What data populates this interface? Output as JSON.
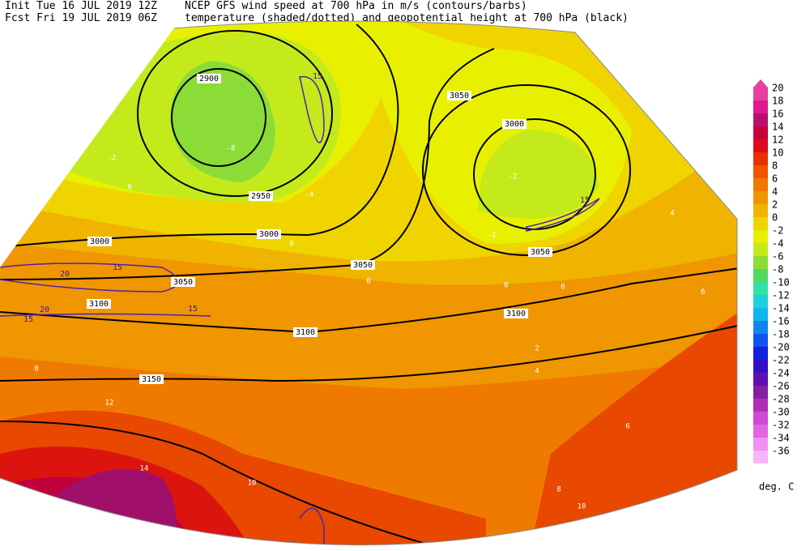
{
  "header": {
    "init": "Init  Tue 16 JUL 2019 12Z",
    "fcst": "Fcst Fri 19 JUL 2019 06Z",
    "title_line1": "NCEP GFS wind speed at 700 hPa in m/s (contours/barbs)",
    "title_line2": "temperature (shaded/dotted) and geopotential height at 700 hPa (black)"
  },
  "colorbar": {
    "unit": "deg. C",
    "entries": [
      {
        "value": 20,
        "color": "#e8409c"
      },
      {
        "value": 18,
        "color": "#e01890"
      },
      {
        "value": 16,
        "color": "#b8106c"
      },
      {
        "value": 14,
        "color": "#c8003c"
      },
      {
        "value": 12,
        "color": "#dc0c1c"
      },
      {
        "value": 10,
        "color": "#e83000"
      },
      {
        "value": 8,
        "color": "#f05400"
      },
      {
        "value": 6,
        "color": "#f07800"
      },
      {
        "value": 4,
        "color": "#f09400"
      },
      {
        "value": 2,
        "color": "#f0b400"
      },
      {
        "value": 0,
        "color": "#f0d400"
      },
      {
        "value": -2,
        "color": "#e8f000"
      },
      {
        "value": -4,
        "color": "#c4ea1c"
      },
      {
        "value": -6,
        "color": "#8cdc38"
      },
      {
        "value": -8,
        "color": "#50d860"
      },
      {
        "value": -10,
        "color": "#30e0a4"
      },
      {
        "value": -12,
        "color": "#20d0d8"
      },
      {
        "value": -14,
        "color": "#10b4f0"
      },
      {
        "value": -16,
        "color": "#1084f0"
      },
      {
        "value": -18,
        "color": "#1054f0"
      },
      {
        "value": -20,
        "color": "#1420e0"
      },
      {
        "value": -22,
        "color": "#3410c4"
      },
      {
        "value": -24,
        "color": "#6010b0"
      },
      {
        "value": -26,
        "color": "#8420a4"
      },
      {
        "value": -28,
        "color": "#b030b4"
      },
      {
        "value": -30,
        "color": "#d048d4"
      },
      {
        "value": -32,
        "color": "#e064e4"
      },
      {
        "value": -34,
        "color": "#f090f0"
      },
      {
        "value": -36,
        "color": "#f8b4f8"
      }
    ]
  },
  "height_labels": [
    "2900",
    "2950",
    "3000",
    "3000",
    "3050",
    "3050",
    "3050",
    "3000",
    "3050",
    "3100",
    "3100",
    "3100",
    "3150"
  ],
  "wind_labels": [
    "15",
    "15",
    "20",
    "15",
    "20",
    "15",
    "15"
  ],
  "temperature_labels": [
    "-8",
    "-4",
    "-2",
    "0",
    "-2",
    "-2",
    "0",
    "0",
    "0",
    "0",
    "2",
    "4",
    "4",
    "6",
    "8",
    "12",
    "10",
    "10",
    "14",
    "8",
    "6"
  ]
}
